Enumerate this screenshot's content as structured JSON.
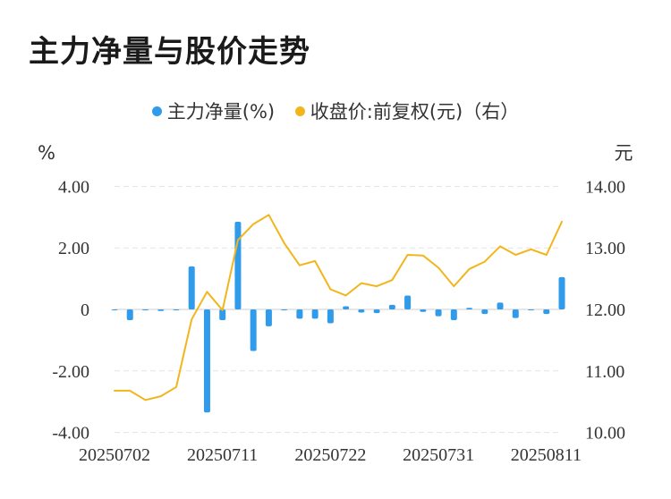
{
  "title": "主力净量与股价走势",
  "legend": {
    "series1": "主力净量(%)",
    "series2": "收盘价:前复权(元)（右）"
  },
  "colors": {
    "bar": "#2f9bea",
    "line": "#f2b51c",
    "grid": "#e3e3e3",
    "text": "#333333"
  },
  "chart_data": {
    "type": "bar",
    "title": "主力净量与股价走势",
    "y_unit_left": "%",
    "y_unit_right": "元",
    "ylim_left": [
      -4,
      4
    ],
    "ylim_right": [
      10,
      14
    ],
    "yticks_left": [
      "4.00",
      "2.00",
      "0",
      "-2.00",
      "-4.00"
    ],
    "yticks_right": [
      "14.00",
      "13.00",
      "12.00",
      "11.00",
      "10.00"
    ],
    "xtick_labels": [
      "20250702",
      "20250711",
      "20250722",
      "20250731",
      "20250811"
    ],
    "x": [
      "20250702",
      "20250703",
      "20250704",
      "20250707",
      "20250708",
      "20250709",
      "20250710",
      "20250711",
      "20250714",
      "20250715",
      "20250716",
      "20250717",
      "20250718",
      "20250721",
      "20250722",
      "20250723",
      "20250724",
      "20250725",
      "20250728",
      "20250729",
      "20250730",
      "20250731",
      "20250801",
      "20250804",
      "20250805",
      "20250806",
      "20250807",
      "20250808",
      "20250811",
      "20250812"
    ],
    "series": [
      {
        "name": "主力净量(%)",
        "type": "bar",
        "axis": "left",
        "values": [
          0.0,
          -0.35,
          0.0,
          -0.05,
          0.0,
          1.4,
          -3.35,
          -0.35,
          2.85,
          -1.35,
          -0.55,
          0.0,
          -0.3,
          -0.3,
          -0.45,
          0.1,
          -0.1,
          -0.12,
          0.15,
          0.45,
          -0.08,
          -0.22,
          -0.35,
          0.05,
          -0.15,
          0.22,
          -0.28,
          -0.02,
          -0.15,
          1.05
        ]
      },
      {
        "name": "收盘价:前复权(元)（右）",
        "type": "line",
        "axis": "right",
        "values": [
          10.67,
          10.67,
          10.52,
          10.58,
          10.73,
          11.83,
          12.28,
          11.98,
          13.12,
          13.38,
          13.53,
          13.07,
          12.71,
          12.78,
          12.32,
          12.22,
          12.42,
          12.37,
          12.47,
          12.88,
          12.87,
          12.67,
          12.37,
          12.65,
          12.77,
          13.02,
          12.88,
          12.97,
          12.88,
          13.42
        ]
      }
    ],
    "grid": true,
    "legend_position": "top-center"
  }
}
